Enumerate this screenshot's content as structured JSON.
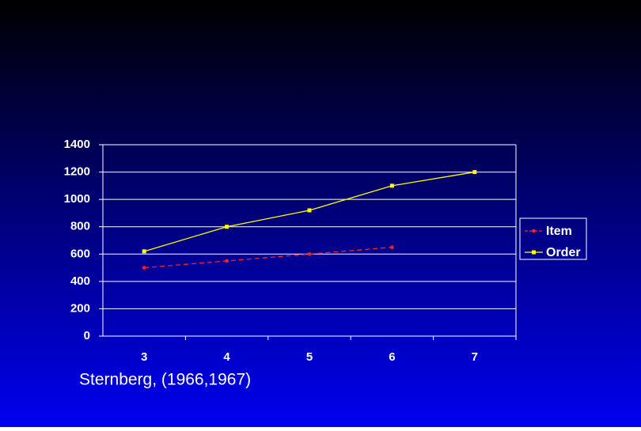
{
  "chart_data": {
    "type": "line",
    "categories": [
      "3",
      "4",
      "5",
      "6",
      "7"
    ],
    "series": [
      {
        "name": "Item",
        "color": "#ff2020",
        "dash": true,
        "values": [
          500,
          550,
          600,
          650,
          null
        ]
      },
      {
        "name": "Order",
        "color": "#ffff00",
        "dash": false,
        "values": [
          620,
          800,
          920,
          1100,
          1200
        ]
      }
    ],
    "ylim": [
      0,
      1400
    ],
    "yticks": [
      0,
      200,
      400,
      600,
      800,
      1000,
      1200,
      1400
    ],
    "grid": true,
    "legend": "right"
  },
  "footer": "Sternberg, (1966,1967)"
}
